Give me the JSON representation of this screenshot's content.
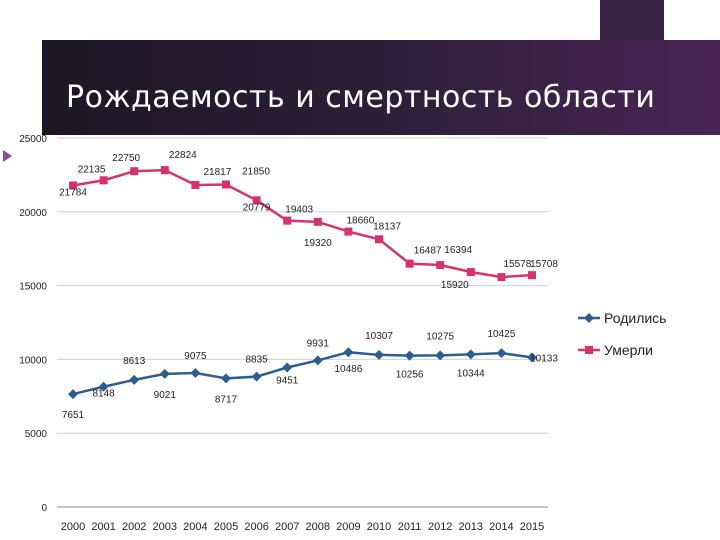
{
  "title": "Рождаемость и смертность области",
  "chart_data": {
    "type": "line",
    "title": "Рождаемость и смертность области",
    "categories": [
      "2000",
      "2001",
      "2002",
      "2003",
      "2004",
      "2005",
      "2006",
      "2007",
      "2008",
      "2009",
      "2010",
      "2011",
      "2012",
      "2013",
      "2014",
      "2015"
    ],
    "ylim": [
      0,
      25000
    ],
    "yticks": [
      0,
      5000,
      10000,
      15000,
      20000,
      25000
    ],
    "ytick_labels": [
      "0",
      "5000",
      "10000",
      "15000",
      "20000",
      "25000"
    ],
    "grid": true,
    "legend": "right",
    "series": [
      {
        "name": "Родились",
        "color": "#2e5e8e",
        "marker": "diamond",
        "values": [
          7651,
          8148,
          8613,
          9021,
          9075,
          8717,
          8835,
          9451,
          9931,
          10486,
          10307,
          10256,
          10275,
          10344,
          10425,
          10133
        ],
        "labels": [
          "7651",
          "8148",
          "8613",
          "9021",
          "9075",
          "8717",
          "8835",
          "9451",
          "9931",
          "10486",
          "10307",
          "10256",
          "10275",
          "10344",
          "10425",
          "10133"
        ]
      },
      {
        "name": "Умерли",
        "color": "#d6336c",
        "marker": "square",
        "values": [
          21784,
          22135,
          22750,
          22824,
          21817,
          21850,
          20779,
          19403,
          19320,
          18660,
          18137,
          16487,
          16394,
          15920,
          15578,
          15708
        ],
        "labels": [
          "21784",
          "22135",
          "22750",
          "22824",
          "21817",
          "21850",
          "20779",
          "19403",
          "19320",
          "18660",
          "18137",
          "16487",
          "16394",
          "15920",
          "15578",
          "15708"
        ]
      }
    ]
  }
}
